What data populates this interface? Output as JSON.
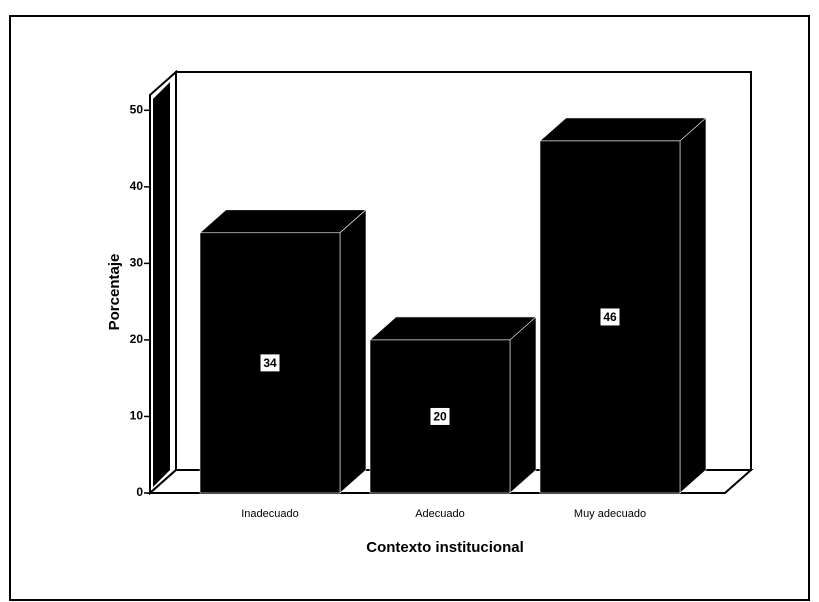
{
  "chart_data": {
    "type": "bar3d",
    "x_label": "Contexto institucional",
    "y_label": "Porcentaje",
    "categories": [
      "Inadecuado",
      "Adecuado",
      "Muy adecuado"
    ],
    "values": [
      34,
      20,
      46
    ],
    "color": "#000000",
    "ylim": [
      0,
      52
    ],
    "yticks": [
      0,
      10,
      20,
      30,
      40,
      50
    ],
    "grid": false
  }
}
